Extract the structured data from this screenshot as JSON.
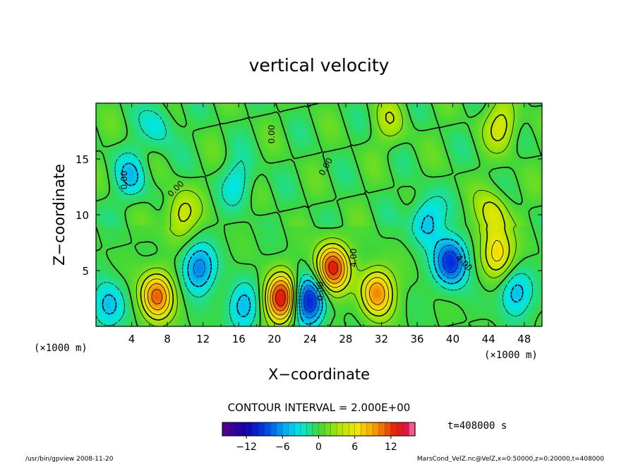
{
  "chart_data": {
    "type": "heatmap",
    "title": "vertical velocity",
    "xlabel": "X−coordinate",
    "ylabel": "Z−coordinate",
    "x_unit_left": "(×1000 m)",
    "x_unit_right": "(×1000 m)",
    "xlim": [
      0,
      50
    ],
    "ylim": [
      0,
      20
    ],
    "x_ticks": [
      4,
      8,
      12,
      16,
      20,
      24,
      28,
      32,
      36,
      40,
      44,
      48
    ],
    "y_ticks": [
      5,
      10,
      15
    ],
    "contour_interval_text": "CONTOUR INTERVAL = 2.000E+00",
    "time_text": "t=408000 s",
    "colorbar": {
      "min": -16,
      "max": 16,
      "ticks": [
        "−12",
        "−6",
        "0",
        "6",
        "12"
      ],
      "tick_values": [
        -12,
        -6,
        0,
        6,
        12
      ]
    },
    "contour_labels": [
      "0.00",
      "0.00",
      "0.00",
      "0.00",
      "4.00",
      "0.00",
      "4.00"
    ],
    "features": [
      {
        "x": 6.8,
        "z": 2.7,
        "value": 11
      },
      {
        "x": 11.5,
        "z": 5.2,
        "value": -7
      },
      {
        "x": 1.5,
        "z": 1.8,
        "value": -5
      },
      {
        "x": 16.5,
        "z": 1.8,
        "value": -5
      },
      {
        "x": 20.8,
        "z": 2.5,
        "value": 14
      },
      {
        "x": 23.8,
        "z": 2.3,
        "value": -11
      },
      {
        "x": 26.5,
        "z": 5.2,
        "value": 13
      },
      {
        "x": 31.5,
        "z": 3.0,
        "value": 10
      },
      {
        "x": 39.8,
        "z": 5.8,
        "value": -10
      },
      {
        "x": 37.0,
        "z": 9.5,
        "value": -5
      },
      {
        "x": 45.0,
        "z": 6.5,
        "value": 7
      },
      {
        "x": 44.5,
        "z": 10.0,
        "value": 5
      },
      {
        "x": 47.0,
        "z": 3.0,
        "value": -5
      },
      {
        "x": 9.5,
        "z": 10.0,
        "value": 5
      },
      {
        "x": 4.0,
        "z": 13.5,
        "value": -4
      },
      {
        "x": 16.0,
        "z": 13.0,
        "value": -3
      },
      {
        "x": 45.5,
        "z": 18.0,
        "value": 5
      },
      {
        "x": 7.0,
        "z": 18.0,
        "value": -3
      },
      {
        "x": 33.0,
        "z": 18.5,
        "value": 3
      }
    ]
  },
  "footer": {
    "left": "/usr/bin/gpview   2008-11-20",
    "right": "MarsCond_VelZ.nc@VelZ,x=0:50000,z=0:20000,t=408000"
  }
}
